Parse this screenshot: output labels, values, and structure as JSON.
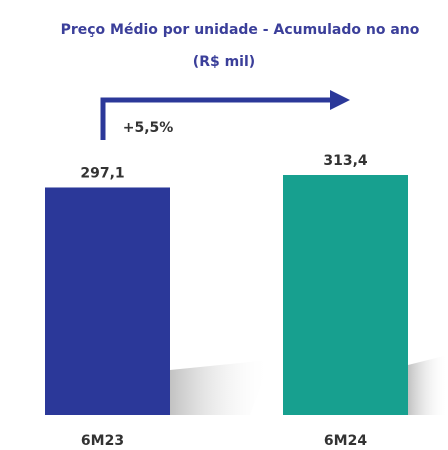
{
  "chart_data": {
    "type": "bar",
    "title": "Preço Médio por unidade - Acumulado no ano",
    "subtitle": "(R$ mil)",
    "annotation": "+5,5%",
    "categories": [
      "6M23",
      "6M24"
    ],
    "values": [
      297.1,
      313.4
    ],
    "value_labels": [
      "297,1",
      "313,4"
    ],
    "colors": [
      "#2b3899",
      "#17a08f"
    ]
  }
}
